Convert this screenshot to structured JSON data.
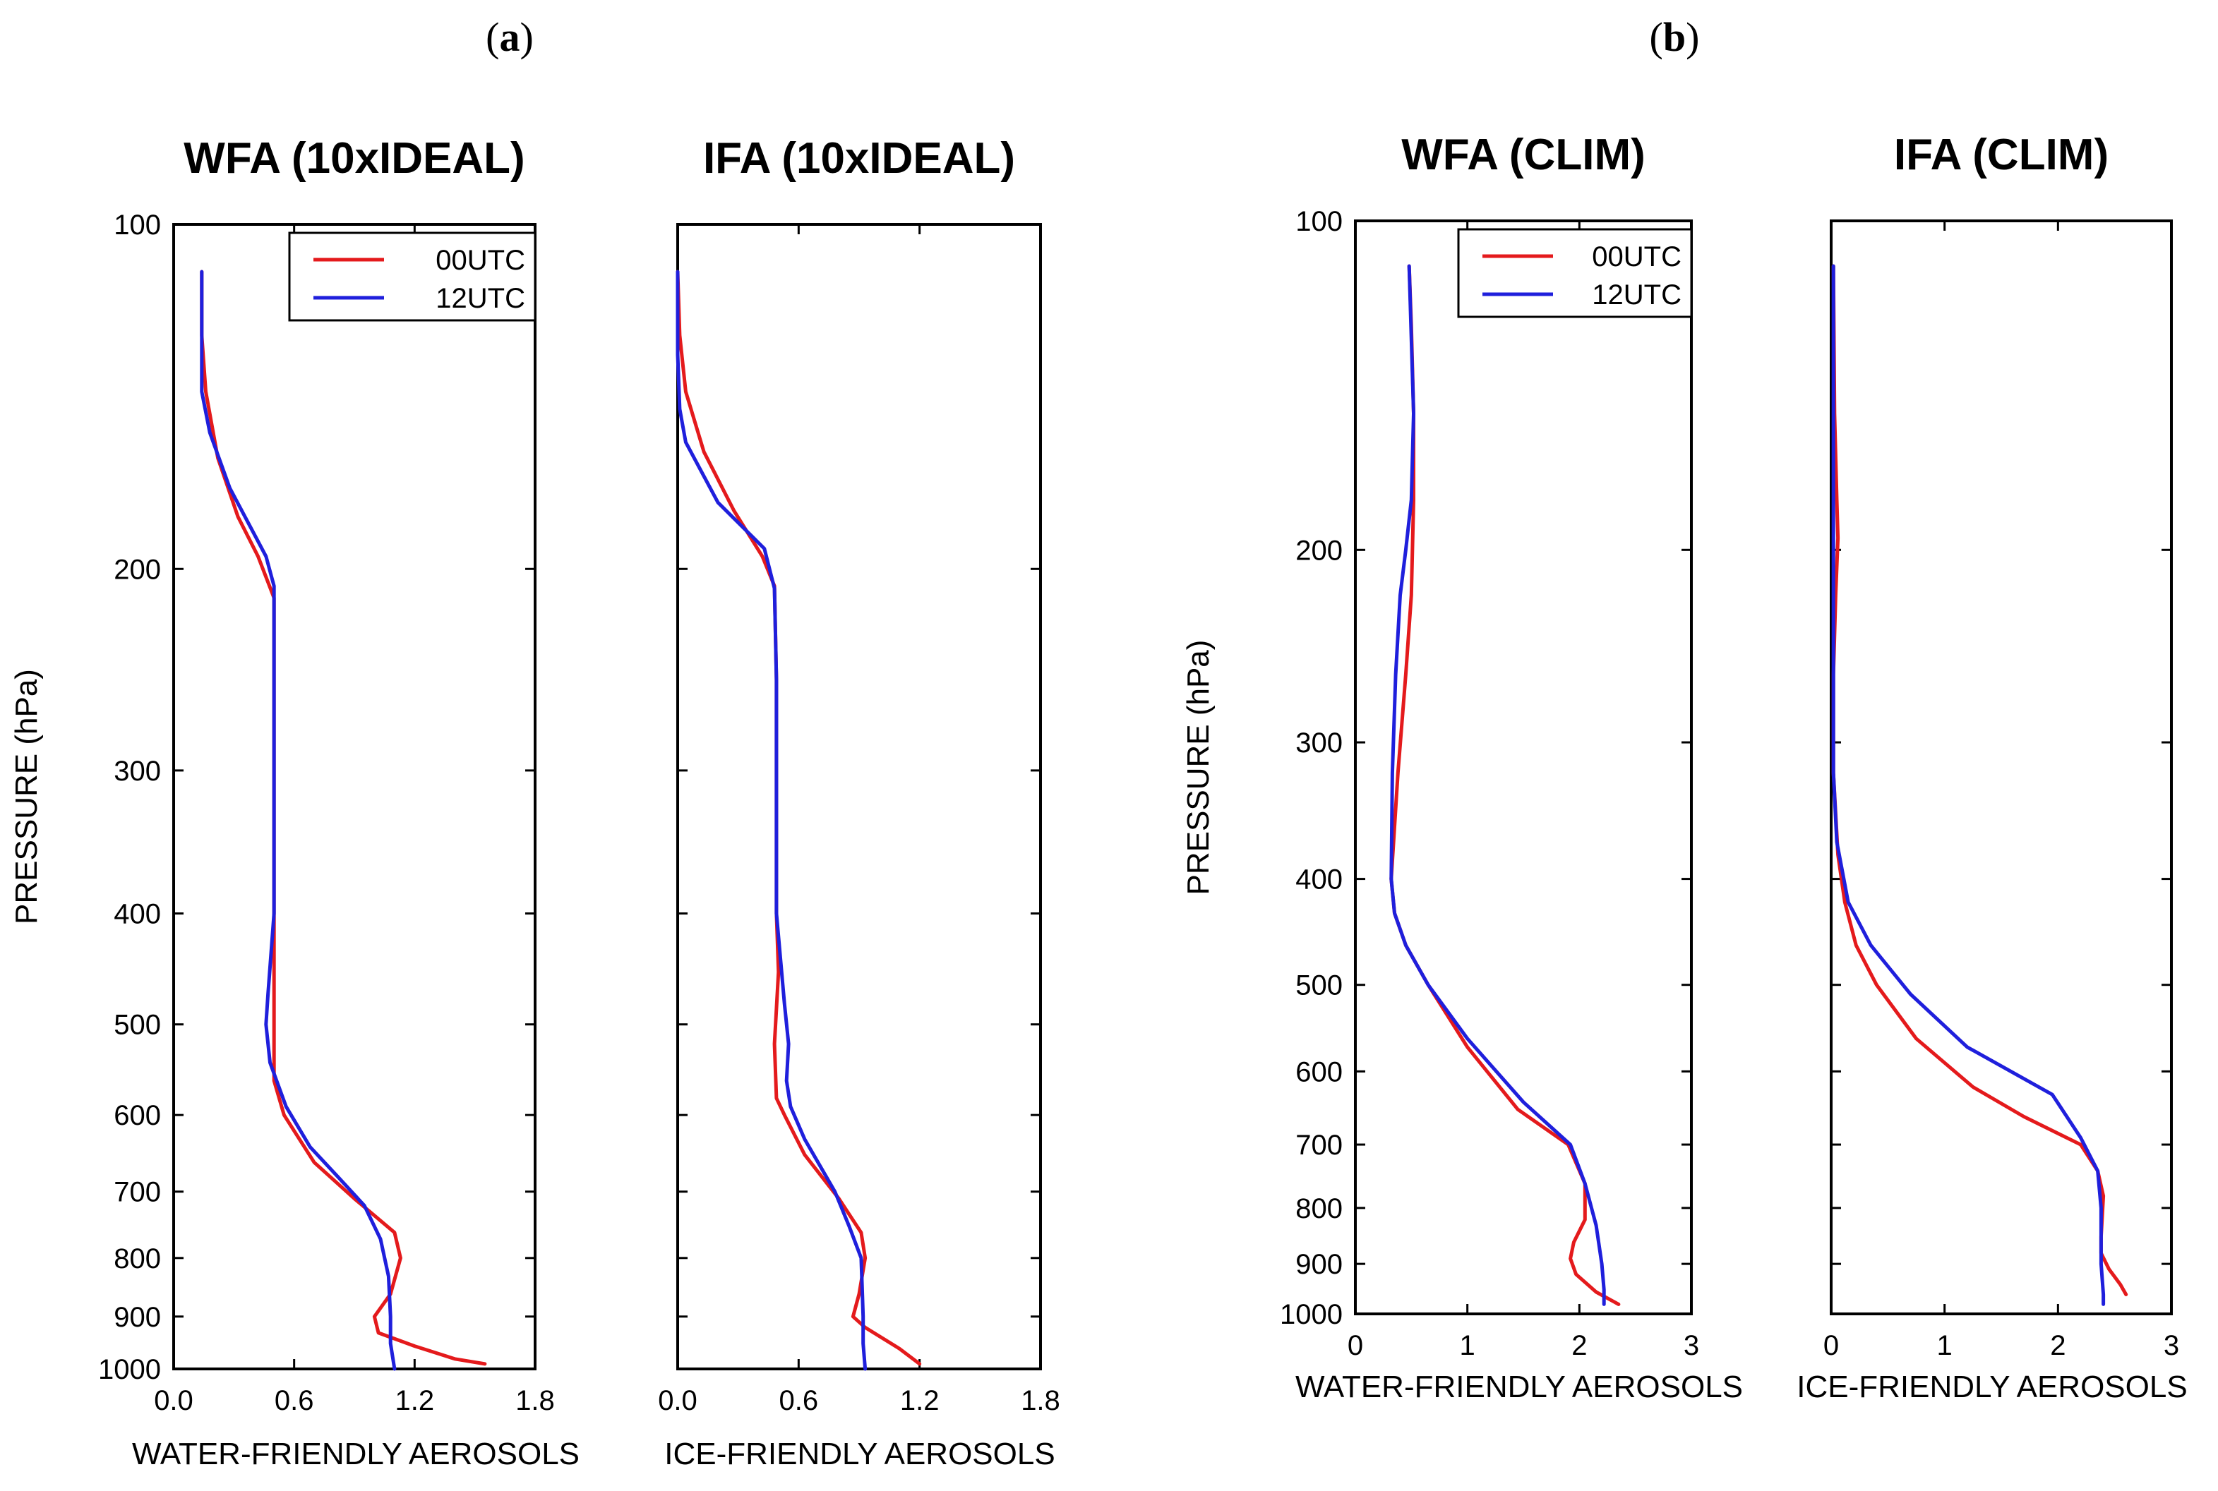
{
  "panels": [
    {
      "label": "(a)",
      "letter": "a"
    },
    {
      "label": "(b)",
      "letter": "b"
    }
  ],
  "colors": {
    "red": "#e41a1c",
    "blue": "#1f1fdc",
    "axis": "#000000"
  },
  "chart_data": [
    {
      "type": "line",
      "panel": "a",
      "title": "WFA (10xIDEAL)",
      "xlabel": "WATER-FRIENDLY AEROSOLS",
      "ylabel": "PRESSURE (hPa)",
      "xlim": [
        0,
        1.8
      ],
      "ylim": [
        100,
        1000
      ],
      "yscale": "log",
      "y_inverted": true,
      "xticks": [
        0.0,
        0.6,
        1.2,
        1.8
      ],
      "xtick_labels": [
        "0.0",
        "0.6",
        "1.2",
        "1.8"
      ],
      "yticks": [
        100,
        200,
        300,
        400,
        500,
        600,
        700,
        800,
        900,
        1000
      ],
      "ytick_labels": [
        "100",
        "200",
        "300",
        "400",
        "500",
        "600",
        "700",
        "800",
        "900",
        "1000"
      ],
      "show_ytick_labels": true,
      "show_ylabel": true,
      "legend": {
        "position": "top-right",
        "entries": [
          "00UTC",
          "12UTC"
        ]
      },
      "series": [
        {
          "name": "00UTC",
          "color": "red",
          "points": [
            [
              0.14,
              110
            ],
            [
              0.14,
              125
            ],
            [
              0.16,
              140
            ],
            [
              0.22,
              160
            ],
            [
              0.32,
              180
            ],
            [
              0.42,
              195
            ],
            [
              0.5,
              212
            ],
            [
              0.5,
              250
            ],
            [
              0.5,
              300
            ],
            [
              0.5,
              400
            ],
            [
              0.5,
              500
            ],
            [
              0.5,
              560
            ],
            [
              0.55,
              600
            ],
            [
              0.7,
              660
            ],
            [
              0.9,
              710
            ],
            [
              1.1,
              760
            ],
            [
              1.13,
              800
            ],
            [
              1.08,
              860
            ],
            [
              1.0,
              900
            ],
            [
              1.02,
              930
            ],
            [
              1.2,
              955
            ],
            [
              1.4,
              980
            ],
            [
              1.55,
              990
            ]
          ]
        },
        {
          "name": "12UTC",
          "color": "blue",
          "points": [
            [
              0.14,
              110
            ],
            [
              0.14,
              125
            ],
            [
              0.14,
              140
            ],
            [
              0.18,
              152
            ],
            [
              0.28,
              170
            ],
            [
              0.46,
              195
            ],
            [
              0.5,
              207
            ],
            [
              0.5,
              250
            ],
            [
              0.5,
              300
            ],
            [
              0.5,
              400
            ],
            [
              0.47,
              470
            ],
            [
              0.46,
              500
            ],
            [
              0.48,
              540
            ],
            [
              0.56,
              590
            ],
            [
              0.68,
              640
            ],
            [
              0.82,
              680
            ],
            [
              0.95,
              720
            ],
            [
              1.03,
              770
            ],
            [
              1.07,
              830
            ],
            [
              1.08,
              900
            ],
            [
              1.08,
              950
            ],
            [
              1.1,
              1000
            ]
          ]
        }
      ]
    },
    {
      "type": "line",
      "panel": "a",
      "title": "IFA (10xIDEAL)",
      "xlabel": "ICE-FRIENDLY AEROSOLS",
      "ylabel": "",
      "xlim": [
        0,
        1.8
      ],
      "ylim": [
        100,
        1000
      ],
      "yscale": "log",
      "y_inverted": true,
      "xticks": [
        0.0,
        0.6,
        1.2,
        1.8
      ],
      "xtick_labels": [
        "0.0",
        "0.6",
        "1.2",
        "1.8"
      ],
      "yticks": [
        100,
        200,
        300,
        400,
        500,
        600,
        700,
        800,
        900,
        1000
      ],
      "ytick_labels": [],
      "show_ytick_labels": false,
      "show_ylabel": false,
      "legend": null,
      "series": [
        {
          "name": "00UTC",
          "color": "red",
          "points": [
            [
              0.0,
              110
            ],
            [
              0.01,
              125
            ],
            [
              0.04,
              140
            ],
            [
              0.13,
              158
            ],
            [
              0.28,
              178
            ],
            [
              0.42,
              195
            ],
            [
              0.48,
              207
            ],
            [
              0.49,
              250
            ],
            [
              0.49,
              300
            ],
            [
              0.49,
              400
            ],
            [
              0.5,
              450
            ],
            [
              0.48,
              520
            ],
            [
              0.49,
              580
            ],
            [
              0.53,
              600
            ],
            [
              0.63,
              650
            ],
            [
              0.8,
              710
            ],
            [
              0.91,
              760
            ],
            [
              0.93,
              800
            ],
            [
              0.9,
              860
            ],
            [
              0.87,
              900
            ],
            [
              0.93,
              920
            ],
            [
              1.1,
              960
            ],
            [
              1.2,
              990
            ]
          ]
        },
        {
          "name": "12UTC",
          "color": "blue",
          "points": [
            [
              0.0,
              110
            ],
            [
              0.0,
              130
            ],
            [
              0.01,
              145
            ],
            [
              0.04,
              155
            ],
            [
              0.2,
              175
            ],
            [
              0.43,
              192
            ],
            [
              0.48,
              208
            ],
            [
              0.49,
              250
            ],
            [
              0.49,
              300
            ],
            [
              0.49,
              400
            ],
            [
              0.53,
              480
            ],
            [
              0.55,
              520
            ],
            [
              0.54,
              560
            ],
            [
              0.56,
              590
            ],
            [
              0.63,
              630
            ],
            [
              0.78,
              700
            ],
            [
              0.85,
              750
            ],
            [
              0.91,
              800
            ],
            [
              0.92,
              900
            ],
            [
              0.92,
              950
            ],
            [
              0.93,
              1000
            ]
          ]
        }
      ]
    },
    {
      "type": "line",
      "panel": "b",
      "title": "WFA (CLIM)",
      "xlabel": "WATER-FRIENDLY AEROSOLS",
      "ylabel": "PRESSURE (hPa)",
      "xlim": [
        0,
        3
      ],
      "ylim": [
        100,
        1000
      ],
      "yscale": "log",
      "y_inverted": true,
      "xticks": [
        0,
        1,
        2,
        3
      ],
      "xtick_labels": [
        "0",
        "1",
        "2",
        "3"
      ],
      "yticks": [
        100,
        200,
        300,
        400,
        500,
        600,
        700,
        800,
        900,
        1000
      ],
      "ytick_labels": [
        "100",
        "200",
        "300",
        "400",
        "500",
        "600",
        "700",
        "800",
        "900",
        "1000"
      ],
      "show_ytick_labels": true,
      "show_ylabel": true,
      "legend": {
        "position": "top-right",
        "entries": [
          "00UTC",
          "12UTC"
        ]
      },
      "series": [
        {
          "name": "00UTC",
          "color": "red",
          "points": [
            [
              0.48,
              110
            ],
            [
              0.5,
              125
            ],
            [
              0.52,
              150
            ],
            [
              0.52,
              180
            ],
            [
              0.5,
              220
            ],
            [
              0.45,
              260
            ],
            [
              0.38,
              320
            ],
            [
              0.32,
              400
            ],
            [
              0.35,
              430
            ],
            [
              0.45,
              460
            ],
            [
              0.65,
              500
            ],
            [
              1.0,
              570
            ],
            [
              1.45,
              650
            ],
            [
              1.9,
              700
            ],
            [
              2.05,
              760
            ],
            [
              2.05,
              820
            ],
            [
              1.95,
              860
            ],
            [
              1.92,
              890
            ],
            [
              1.97,
              920
            ],
            [
              2.15,
              955
            ],
            [
              2.35,
              980
            ]
          ]
        },
        {
          "name": "12UTC",
          "color": "blue",
          "points": [
            [
              0.48,
              110
            ],
            [
              0.52,
              150
            ],
            [
              0.5,
              180
            ],
            [
              0.45,
              200
            ],
            [
              0.4,
              220
            ],
            [
              0.36,
              260
            ],
            [
              0.33,
              320
            ],
            [
              0.32,
              400
            ],
            [
              0.35,
              430
            ],
            [
              0.45,
              460
            ],
            [
              0.65,
              500
            ],
            [
              1.0,
              560
            ],
            [
              1.5,
              640
            ],
            [
              1.92,
              700
            ],
            [
              2.05,
              760
            ],
            [
              2.15,
              830
            ],
            [
              2.2,
              900
            ],
            [
              2.22,
              950
            ],
            [
              2.22,
              980
            ]
          ]
        }
      ]
    },
    {
      "type": "line",
      "panel": "b",
      "title": "IFA (CLIM)",
      "xlabel": "ICE-FRIENDLY AEROSOLS",
      "ylabel": "",
      "xlim": [
        0,
        3
      ],
      "ylim": [
        100,
        1000
      ],
      "yscale": "log",
      "y_inverted": true,
      "xticks": [
        0,
        1,
        2,
        3
      ],
      "xtick_labels": [
        "0",
        "1",
        "2",
        "3"
      ],
      "yticks": [
        100,
        200,
        300,
        400,
        500,
        600,
        700,
        800,
        900,
        1000
      ],
      "ytick_labels": [],
      "show_ytick_labels": false,
      "show_ylabel": false,
      "legend": null,
      "series": [
        {
          "name": "00UTC",
          "color": "red",
          "points": [
            [
              0.02,
              110
            ],
            [
              0.03,
              150
            ],
            [
              0.05,
              180
            ],
            [
              0.06,
              195
            ],
            [
              0.04,
              220
            ],
            [
              0.02,
              260
            ],
            [
              0.02,
              320
            ],
            [
              0.06,
              380
            ],
            [
              0.12,
              420
            ],
            [
              0.22,
              460
            ],
            [
              0.4,
              500
            ],
            [
              0.75,
              560
            ],
            [
              1.25,
              620
            ],
            [
              1.7,
              660
            ],
            [
              2.2,
              700
            ],
            [
              2.35,
              740
            ],
            [
              2.4,
              780
            ],
            [
              2.38,
              850
            ],
            [
              2.38,
              880
            ],
            [
              2.45,
              910
            ],
            [
              2.55,
              940
            ],
            [
              2.6,
              960
            ]
          ]
        },
        {
          "name": "12UTC",
          "color": "blue",
          "points": [
            [
              0.02,
              110
            ],
            [
              0.02,
              150
            ],
            [
              0.02,
              200
            ],
            [
              0.02,
              260
            ],
            [
              0.02,
              320
            ],
            [
              0.05,
              370
            ],
            [
              0.15,
              420
            ],
            [
              0.35,
              460
            ],
            [
              0.7,
              510
            ],
            [
              1.2,
              570
            ],
            [
              1.95,
              630
            ],
            [
              2.2,
              690
            ],
            [
              2.35,
              740
            ],
            [
              2.38,
              800
            ],
            [
              2.38,
              900
            ],
            [
              2.4,
              960
            ],
            [
              2.4,
              980
            ]
          ]
        }
      ]
    }
  ]
}
